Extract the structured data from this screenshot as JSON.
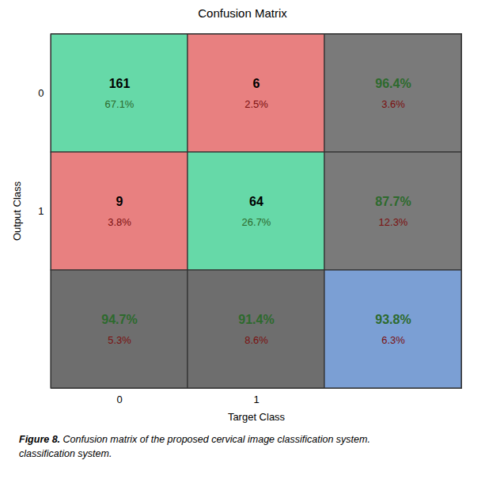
{
  "chart_data": {
    "type": "heatmap",
    "title": "Confusion Matrix",
    "xlabel": "Target Class",
    "ylabel": "Output Class",
    "x_categories": [
      "0",
      "1",
      null
    ],
    "y_categories": [
      "0",
      "1",
      null
    ],
    "cells": [
      [
        {
          "color": "#66d9a8",
          "values": [
            161,
            67.1
          ],
          "value_labels": [
            "161",
            "67.1%"
          ],
          "label_colors": [
            "#000000",
            "#2d6a2d"
          ]
        },
        {
          "color": "#e88080",
          "values": [
            6,
            2.5
          ],
          "value_labels": [
            "6",
            "2.5%"
          ],
          "label_colors": [
            "#000000",
            "#7a1010"
          ]
        },
        {
          "color": "#7a7a7a",
          "values": [
            96.4,
            3.6
          ],
          "value_labels": [
            "96.4%",
            "3.6%"
          ],
          "label_colors": [
            "#2d6a2d",
            "#7a1010"
          ]
        }
      ],
      [
        {
          "color": "#e88080",
          "values": [
            9,
            3.8
          ],
          "value_labels": [
            "9",
            "3.8%"
          ],
          "label_colors": [
            "#000000",
            "#7a1010"
          ]
        },
        {
          "color": "#66d9a8",
          "values": [
            64,
            26.7
          ],
          "value_labels": [
            "64",
            "26.7%"
          ],
          "label_colors": [
            "#000000",
            "#2d6a2d"
          ]
        },
        {
          "color": "#7a7a7a",
          "values": [
            87.7,
            12.3
          ],
          "value_labels": [
            "87.7%",
            "12.3%"
          ],
          "label_colors": [
            "#2d6a2d",
            "#7a1010"
          ]
        }
      ],
      [
        {
          "color": "#6e6e6e",
          "values": [
            94.7,
            5.3
          ],
          "value_labels": [
            "94.7%",
            "5.3%"
          ],
          "label_colors": [
            "#2d6a2d",
            "#7a1010"
          ]
        },
        {
          "color": "#6e6e6e",
          "values": [
            91.4,
            8.6
          ],
          "value_labels": [
            "91.4%",
            "8.6%"
          ],
          "label_colors": [
            "#2d6a2d",
            "#7a1010"
          ]
        },
        {
          "color": "#7b9fd4",
          "values": [
            93.8,
            6.3
          ],
          "value_labels": [
            "93.8%",
            "6.3%"
          ],
          "label_colors": [
            "#2d6a2d",
            "#7a1010"
          ]
        }
      ]
    ],
    "caption_prefix": "Figure 8.",
    "caption_lines": [
      "Confusion matrix of the proposed cervical image classification system.",
      "classification system."
    ]
  }
}
